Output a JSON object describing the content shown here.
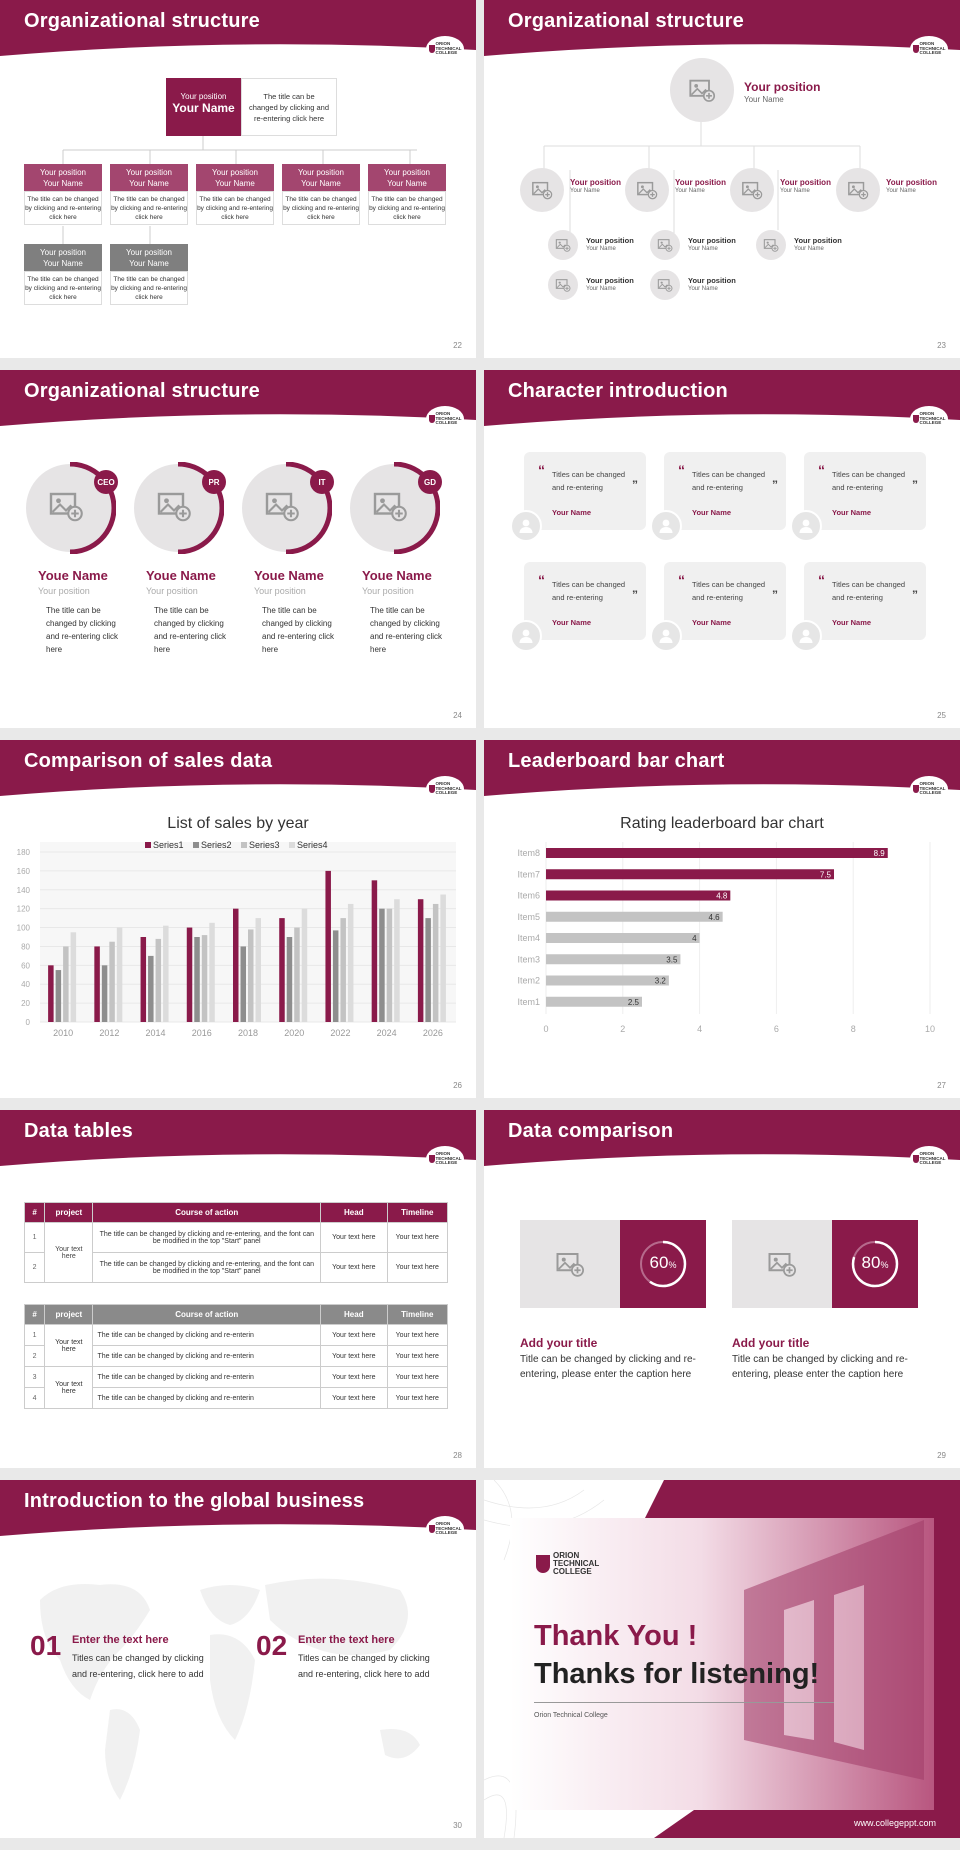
{
  "theme": {
    "accent": "#8a1a4a",
    "gray": "#c6c6c6",
    "darkgray": "#888888",
    "light": "#f0f0f0"
  },
  "logo": {
    "line1": "ORION",
    "line2": "TECHNICAL",
    "line3": "COLLEGE"
  },
  "s22": {
    "title": "Organizational structure",
    "num": "22",
    "top": {
      "position": "Your position",
      "name": "Your Name",
      "desc": "The title can be changed by clicking and re-entering click here"
    },
    "boxes": [
      {
        "position": "Your position",
        "name": "Your Name",
        "desc": "The title can be changed by clicking and re-entering click here"
      },
      {
        "position": "Your position",
        "name": "Your Name",
        "desc": "The title can be changed by clicking and re-entering click here"
      },
      {
        "position": "Your position",
        "name": "Your Name",
        "desc": "The title can be changed by clicking and re-entering click here"
      },
      {
        "position": "Your position",
        "name": "Your Name",
        "desc": "The title can be changed by clicking and re-entering click here"
      },
      {
        "position": "Your position",
        "name": "Your Name",
        "desc": "The title can be changed by clicking and re-entering click here"
      },
      {
        "position": "Your position",
        "name": "Your Name",
        "desc": "The title can be changed by clicking and re-entering click here"
      },
      {
        "position": "Your position",
        "name": "Your Name",
        "desc": "The title can be changed by clicking and re-entering click here"
      }
    ]
  },
  "s23": {
    "title": "Organizational structure",
    "num": "23",
    "position": "Your position",
    "name": "Your Name"
  },
  "s24": {
    "title": "Organizational structure",
    "num": "24",
    "members": [
      {
        "badge": "CEO",
        "name": "Youe Name",
        "position": "Your position",
        "desc": "The title can be changed by clicking and re-entering click here"
      },
      {
        "badge": "PR",
        "name": "Youe Name",
        "position": "Your position",
        "desc": "The title can be changed by clicking and re-entering click here"
      },
      {
        "badge": "IT",
        "name": "Youe Name",
        "position": "Your position",
        "desc": "The title can be changed by clicking and re-entering click here"
      },
      {
        "badge": "GD",
        "name": "Youe Name",
        "position": "Your position",
        "desc": "The title can be changed by clicking and re-entering click here"
      }
    ]
  },
  "s25": {
    "title": "Character introduction",
    "num": "25",
    "card_text": "Titles can be changed and re-entering",
    "card_name": "Your Name"
  },
  "s26": {
    "title": "Comparison of sales data",
    "num": "26"
  },
  "s27": {
    "title": "Leaderboard bar chart",
    "num": "27"
  },
  "chart_data": [
    {
      "type": "bar",
      "title": "List of sales by year",
      "categories": [
        "2010",
        "2012",
        "2014",
        "2016",
        "2018",
        "2020",
        "2022",
        "2024",
        "2026"
      ],
      "series": [
        {
          "name": "Series1",
          "values": [
            60,
            80,
            90,
            100,
            120,
            110,
            160,
            150,
            130
          ]
        },
        {
          "name": "Series2",
          "values": [
            55,
            60,
            70,
            90,
            80,
            90,
            97,
            120,
            110
          ]
        },
        {
          "name": "Series3",
          "values": [
            80,
            85,
            88,
            92,
            98,
            100,
            110,
            120,
            125
          ]
        },
        {
          "name": "Series4",
          "values": [
            95,
            100,
            102,
            105,
            110,
            120,
            125,
            130,
            135
          ]
        }
      ],
      "yticks": [
        0,
        20,
        40,
        60,
        80,
        100,
        120,
        140,
        160,
        180
      ],
      "ylim": [
        0,
        180
      ],
      "legend": "top"
    },
    {
      "type": "bar",
      "orientation": "horizontal",
      "title": "Rating leaderboard bar chart",
      "categories": [
        "Item8",
        "Item7",
        "Item6",
        "Item5",
        "Item4",
        "Item3",
        "Item2",
        "Item1"
      ],
      "values": [
        8.9,
        7.5,
        4.8,
        4.6,
        4,
        3.5,
        3.2,
        2.5
      ],
      "highlight": [
        true,
        true,
        true,
        false,
        false,
        false,
        false,
        false
      ],
      "xticks": [
        0,
        2,
        4,
        6,
        8,
        10
      ],
      "xlim": [
        0,
        10
      ]
    }
  ],
  "s28": {
    "title": "Data tables",
    "num": "28",
    "headers": [
      "#",
      "project",
      "Course of action",
      "Head",
      "Timeline"
    ],
    "t1": {
      "project": "Your text here",
      "rows": [
        {
          "n": "1",
          "action": "The title can be changed by clicking and re-entering, and the font can be modified in the top \"Start\" panel",
          "head": "Your text here",
          "time": "Your text here"
        },
        {
          "n": "2",
          "action": "The title can be changed by clicking and re-entering, and the font can be modified in the top \"Start\" panel",
          "head": "Your text here",
          "time": "Your text here"
        }
      ]
    },
    "t2": {
      "project": "Your text here",
      "rows": [
        {
          "n": "1",
          "action": "The title can be changed by clicking and re-enterin",
          "head": "Your text here",
          "time": "Your text here"
        },
        {
          "n": "2",
          "action": "The title can be changed by clicking and re-enterin",
          "head": "Your text here",
          "time": "Your text here"
        },
        {
          "n": "3",
          "action": "The title can be changed by clicking and re-enterin",
          "head": "Your text here",
          "time": "Your text here"
        },
        {
          "n": "4",
          "action": "The title can be changed by clicking and re-enterin",
          "head": "Your text here",
          "time": "Your text here"
        }
      ]
    }
  },
  "s29": {
    "title": "Data comparison",
    "num": "29",
    "items": [
      {
        "pct": "60",
        "pct_value": 0.6,
        "unit": "%",
        "heading": "Add your title",
        "text": "Title can be changed by clicking and re-entering, please enter the caption here"
      },
      {
        "pct": "80",
        "pct_value": 0.8,
        "unit": "%",
        "heading": "Add your title",
        "text": "Title can be changed by clicking and re-entering, please enter the caption here"
      }
    ]
  },
  "s30": {
    "title": "Introduction to the global business",
    "num": "30",
    "items": [
      {
        "n": "01",
        "heading": "Enter the text here",
        "text": "Titles can be changed by clicking and re-entering, click here to add"
      },
      {
        "n": "02",
        "heading": "Enter the text here",
        "text": "Titles can be changed by clicking and re-entering, click here to add"
      }
    ]
  },
  "s31": {
    "thank": "Thank You !",
    "thanks": "Thanks for listening!",
    "college": "Orion Technical College",
    "url": "www.collegeppt.com"
  }
}
